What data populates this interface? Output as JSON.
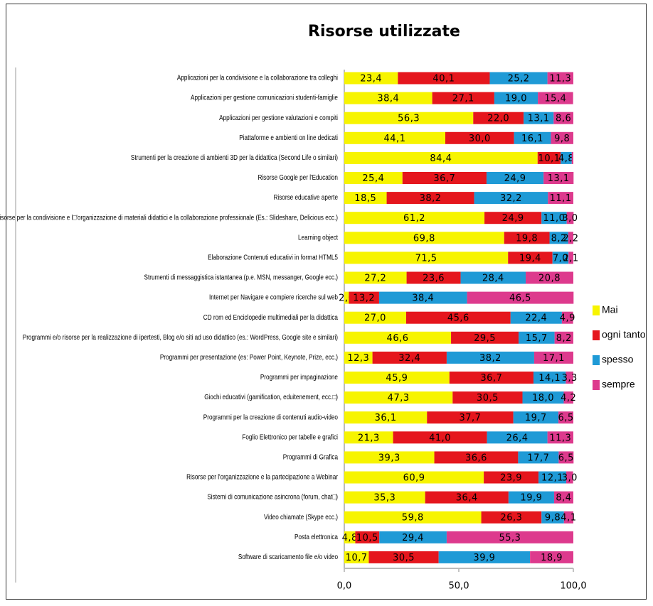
{
  "chart_data": {
    "type": "stacked_bar_horizontal",
    "title": "Risorse utilizzate",
    "categories": [
      "Applicazioni per la condivisione e la collaborazione tra colleghi",
      "Applicazioni per gestione comunicazioni studenti-famiglie",
      "Applicazioni per gestione valutazioni e compiti",
      "Piattaforme e ambienti on line dedicati",
      "Strumenti per la creazione di ambienti 3D per la didattica (Second Life o similari)",
      "Risorse Google per l'Education",
      "Risorse educative aperte",
      "Risorse per la condivisione e l□'organizzazione di materiali didattici e la collaborazione professionale (Es.: Slideshare, Delicious ecc.)",
      "Learning object",
      "Elaborazione Contenuti educativi in format HTML5",
      "Strumenti di messaggistica istantanea (p.e. MSN, messanger, Google ecc.)",
      "Internet per Navigare e compiere ricerche sul web",
      "CD rom ed Enciclopedie multimediali per la didattica",
      "Programmi e/o risorse per la realizzazione di ipertesti, Blog e/o siti ad uso didattico (es.: WordPress, Google site e similari)",
      "Programmi per presentazione (es: Power Point, Keynote, Prize, ecc.)",
      "Programmi per impaginazione",
      "Giochi educativi (gamification, eduitenement, ecc.□)",
      "Programmi per la creazione di contenuti audio-video",
      "Foglio Elettronico per tabelle e grafici",
      "Programmi di Grafica",
      "Risorse per l'organizzazione e la partecipazione a Webinar",
      "Sistemi di comunicazione asincrona (forum, chat□)",
      "Video chiamate (Skype ecc.)",
      "Posta elettronica",
      "Software di scaricamento file e/o video"
    ],
    "series": [
      {
        "name": "Mai",
        "color": "#f7f400",
        "values": [
          23.4,
          38.4,
          56.3,
          44.1,
          84.4,
          25.4,
          18.5,
          61.2,
          69.8,
          71.5,
          27.2,
          2.0,
          27.0,
          46.6,
          12.3,
          45.9,
          47.3,
          36.1,
          21.3,
          39.3,
          60.9,
          35.3,
          59.8,
          4.8,
          10.7
        ],
        "value_labels": [
          "23,4",
          "38,4",
          "56,3",
          "44,1",
          "84,4",
          "25,4",
          "18,5",
          "61,2",
          "69,8",
          "71,5",
          "27,2",
          "2,0",
          "27,0",
          "46,6",
          "12,3",
          "45,9",
          "47,3",
          "36,1",
          "21,3",
          "39,3",
          "60,9",
          "35,3",
          "59,8",
          "4,8",
          "10,7"
        ]
      },
      {
        "name": "ogni tanto",
        "color": "#e5161d",
        "values": [
          40.1,
          27.1,
          22.0,
          30.0,
          10.1,
          36.7,
          38.2,
          24.9,
          19.8,
          19.4,
          23.6,
          13.2,
          45.6,
          29.5,
          32.4,
          36.7,
          30.5,
          37.7,
          41.0,
          36.6,
          23.9,
          36.4,
          26.3,
          10.5,
          30.5
        ],
        "value_labels": [
          "40,1",
          "27,1",
          "22,0",
          "30,0",
          "10,1",
          "36,7",
          "38,2",
          "24,9",
          "19,8",
          "19,4",
          "23,6",
          "13,2",
          "45,6",
          "29,5",
          "32,4",
          "36,7",
          "30,5",
          "37,7",
          "41,0",
          "36,6",
          "23,9",
          "36,4",
          "26,3",
          "10,5",
          "30,5"
        ]
      },
      {
        "name": "spesso",
        "color": "#1f9ad6",
        "values": [
          25.2,
          19.0,
          13.1,
          16.1,
          4.8,
          24.9,
          32.2,
          11.0,
          8.2,
          7.0,
          28.4,
          38.4,
          22.4,
          15.7,
          38.2,
          14.1,
          18.0,
          19.7,
          26.4,
          17.7,
          12.1,
          19.9,
          9.8,
          29.4,
          39.9
        ],
        "value_labels": [
          "25,2",
          "19,0",
          "13,1",
          "16,1",
          "4,8",
          "24,9",
          "32,2",
          "11,0",
          "8,2",
          "7,0",
          "28,4",
          "38,4",
          "22,4",
          "15,7",
          "38,2",
          "14,1",
          "18,0",
          "19,7",
          "26,4",
          "17,7",
          "12,1",
          "19,9",
          "9,8",
          "29,4",
          "39,9"
        ]
      },
      {
        "name": "sempre",
        "color": "#dd3a8d",
        "values": [
          11.3,
          15.4,
          8.6,
          9.8,
          0.7,
          13.1,
          11.1,
          3.0,
          2.2,
          2.1,
          20.8,
          46.5,
          4.9,
          8.2,
          17.1,
          3.3,
          4.2,
          6.5,
          11.3,
          6.5,
          3.0,
          8.4,
          4.1,
          55.3,
          18.9
        ],
        "value_labels": [
          "11,3",
          "15,4",
          "8,6",
          "9,8",
          null,
          "13,1",
          "11,1",
          "3,0",
          "2,2",
          "2,1",
          "20,8",
          "46,5",
          "4,9",
          "8,2",
          "17,1",
          "3,3",
          "4,2",
          "6,5",
          "11,3",
          "6,5",
          "3,0",
          "8,4",
          "4,1",
          "55,3",
          "18,9"
        ]
      }
    ],
    "xlim": [
      0,
      100
    ],
    "xticks": [
      {
        "value": 0,
        "label": "0,0"
      },
      {
        "value": 50,
        "label": "50,0"
      },
      {
        "value": 100,
        "label": "100,0"
      }
    ],
    "legend": "right"
  }
}
